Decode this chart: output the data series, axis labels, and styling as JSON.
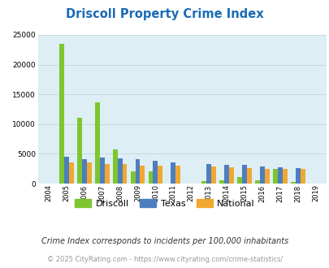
{
  "title": "Driscoll Property Crime Index",
  "years": [
    2004,
    2005,
    2006,
    2007,
    2008,
    2009,
    2010,
    2011,
    2012,
    2013,
    2014,
    2015,
    2016,
    2017,
    2018,
    2019
  ],
  "driscoll": [
    0,
    23500,
    11000,
    13700,
    5800,
    2000,
    2000,
    0,
    0,
    400,
    600,
    1100,
    600,
    2500,
    300,
    0
  ],
  "texas": [
    0,
    4500,
    4100,
    4400,
    4200,
    4100,
    3800,
    3600,
    0,
    3300,
    3200,
    3100,
    2900,
    2700,
    2600,
    0
  ],
  "national": [
    0,
    3500,
    3500,
    3300,
    3300,
    3000,
    3000,
    3000,
    0,
    2900,
    2700,
    2600,
    2500,
    2500,
    2400,
    0
  ],
  "driscoll_color": "#7dc62e",
  "texas_color": "#4d7ebf",
  "national_color": "#f0a830",
  "bg_color": "#ddeef5",
  "grid_color": "#c8d8e0",
  "title_color": "#1a6bb5",
  "ylabel_max": 25000,
  "yticks": [
    0,
    5000,
    10000,
    15000,
    20000,
    25000
  ],
  "footnote1": "Crime Index corresponds to incidents per 100,000 inhabitants",
  "footnote2": "© 2025 CityRating.com - https://www.cityrating.com/crime-statistics/",
  "bar_width": 0.27
}
